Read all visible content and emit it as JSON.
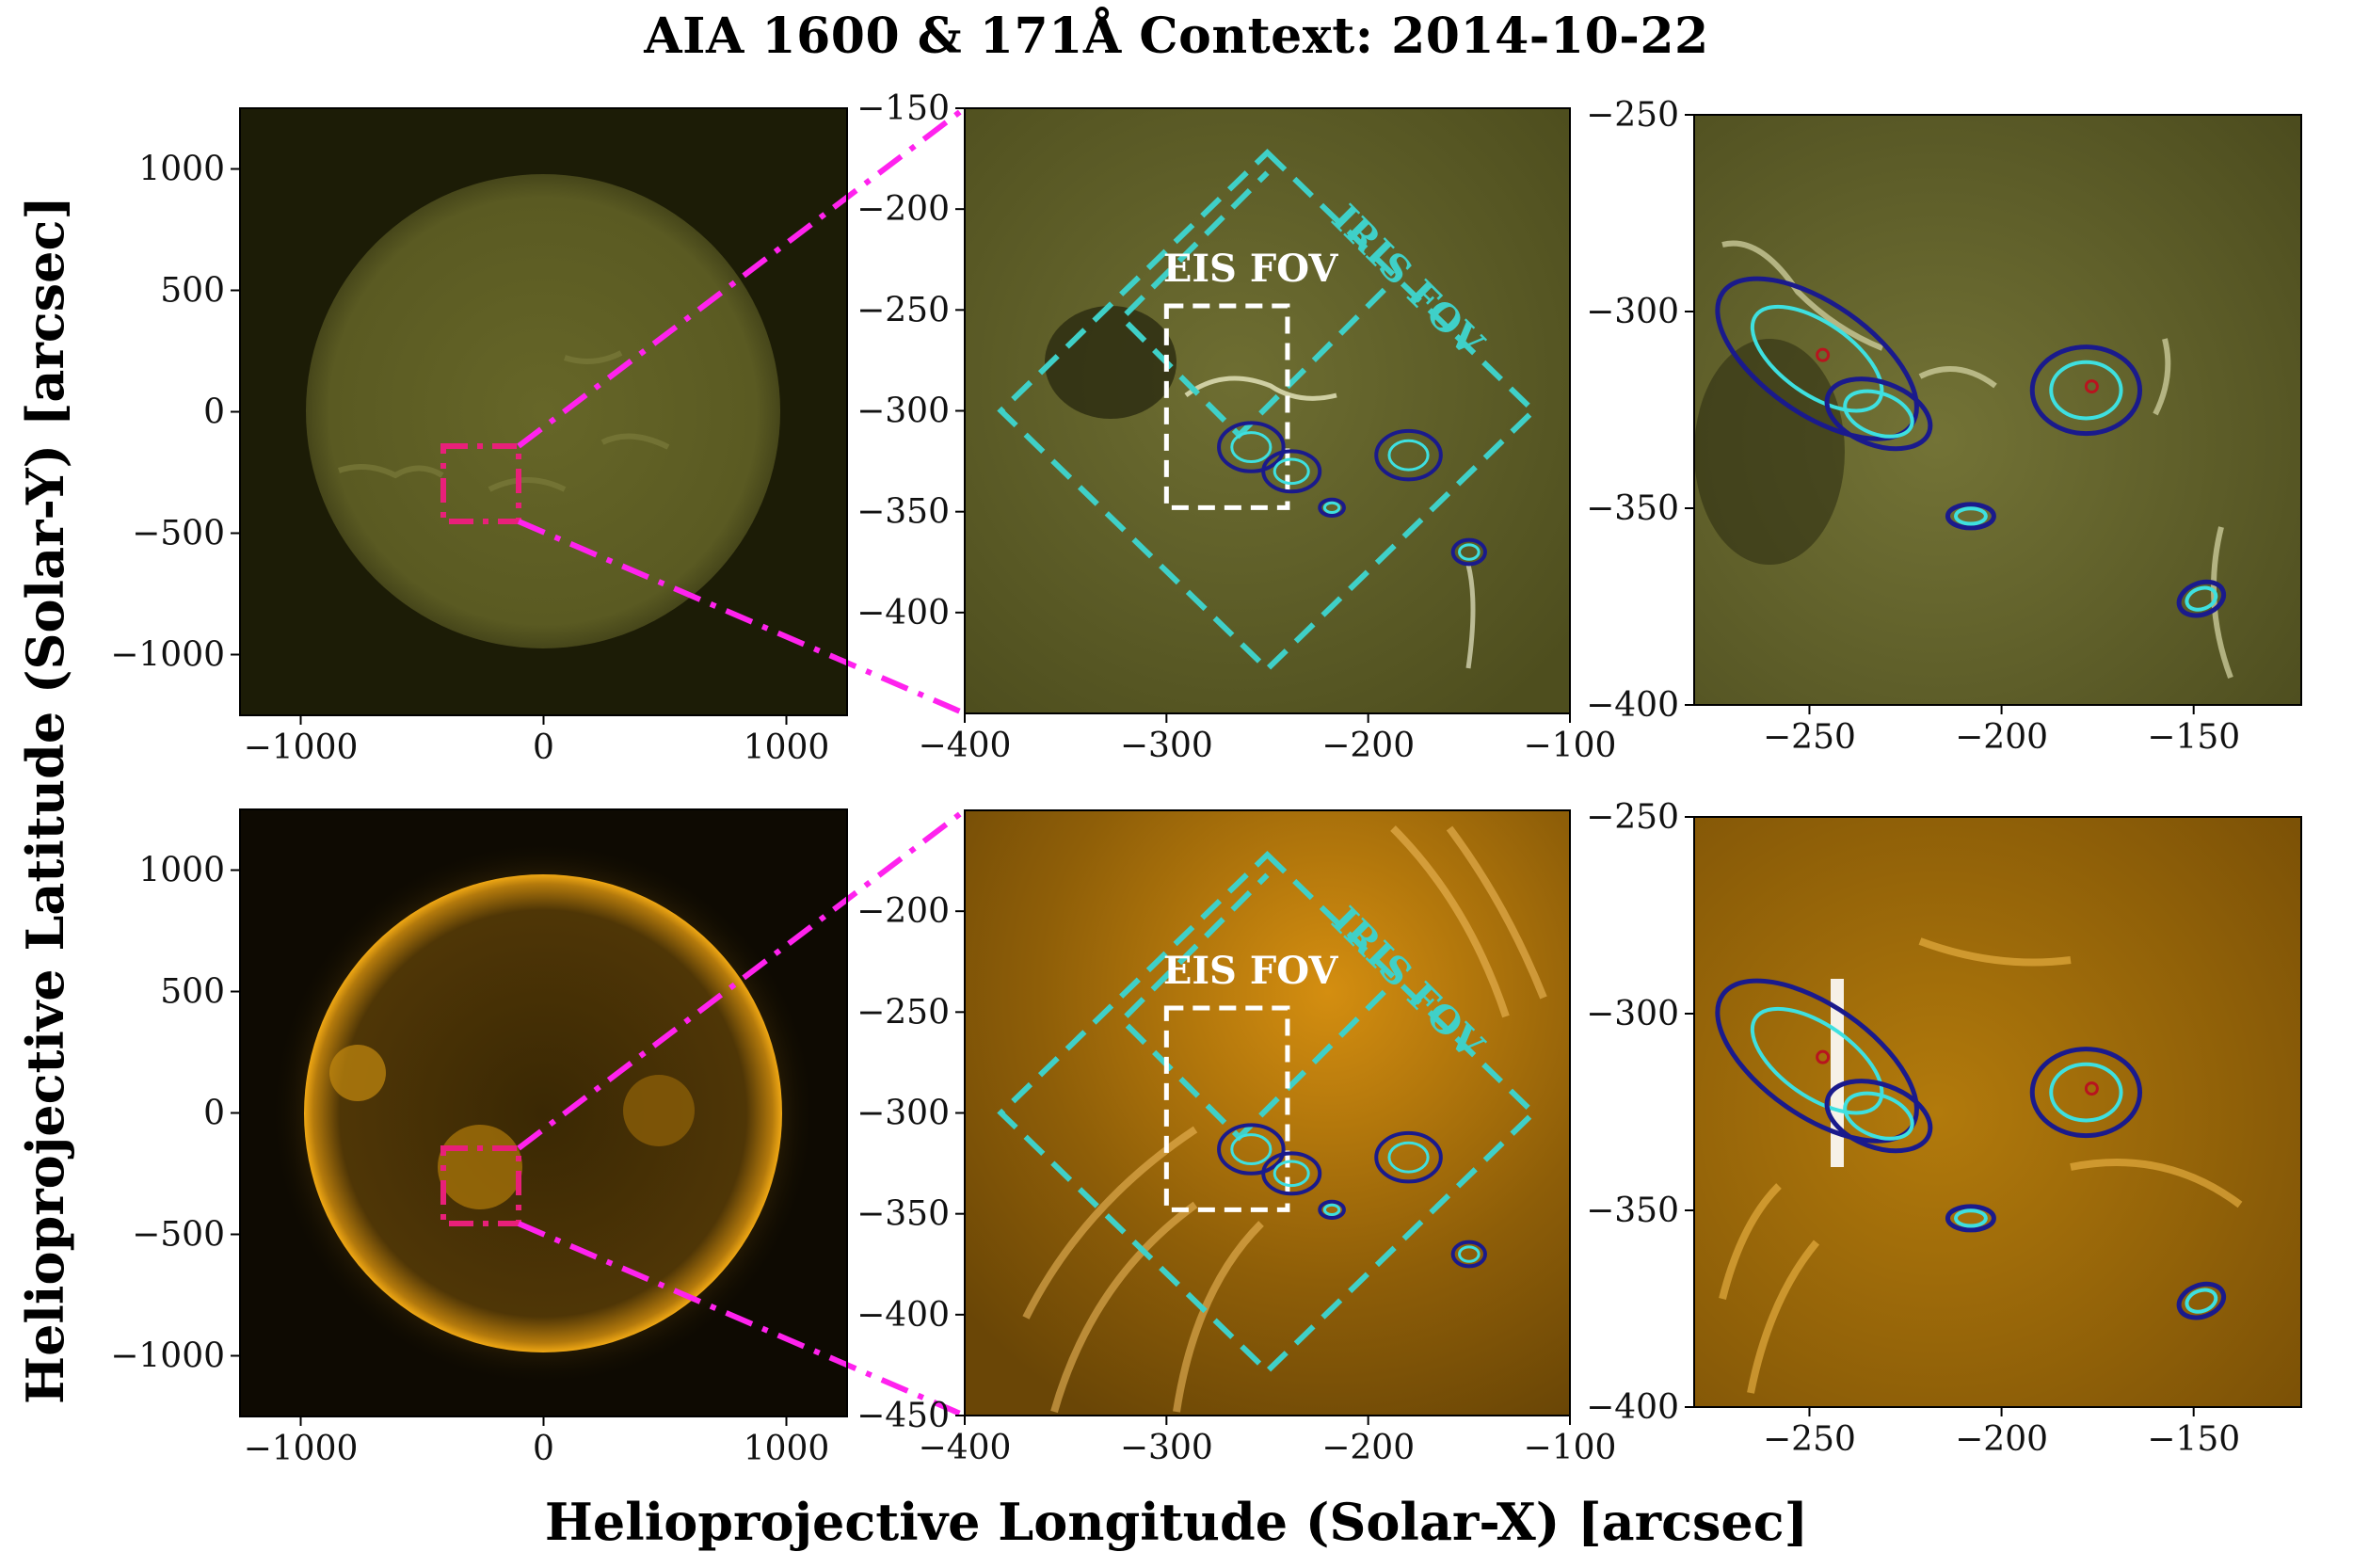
{
  "figure": {
    "title": "AIA 1600 & 171Å Context: 2014-10-22",
    "xlabel": "Helioprojective Longitude (Solar-X) [arcsec]",
    "ylabel": "Helioprojective Latitude (Solar-Y) [arcsec]"
  },
  "colors": {
    "aia1600_bg": "#1c1c06",
    "aia1600_disk": "#5a5a22",
    "aia171_bg": "#0e0a02",
    "aia171_disk": "#4a3204",
    "aia171_limb": "#e6a012",
    "zoom_connector": "#ff22ee",
    "context_box": "#e8207a",
    "iris_fov": "#3fd0c8",
    "eis_fov": "#ffffff",
    "contour_outer": "#1a1a8c",
    "contour_inner": "#3ee0e0",
    "contour_core": "#b8141e"
  },
  "annotations": {
    "eis_fov_label": "EIS FOV",
    "iris_fov_label": "IRIS FOV"
  },
  "chart_data": [
    {
      "type": "heatmap",
      "panel": "aia1600-full-disk",
      "row": "AIA 1600",
      "xlim": [
        -1250,
        1250
      ],
      "ylim": [
        -1250,
        1250
      ],
      "xticks": [
        -1000,
        0,
        1000
      ],
      "xtick_labels": [
        "−1000",
        "0",
        "1000"
      ],
      "yticks": [
        1000,
        500,
        0,
        -500,
        -1000
      ],
      "ytick_labels": [
        "1000",
        "500",
        "0",
        "−500",
        "−1000"
      ],
      "context_box": {
        "x": [
          -400,
          -100
        ],
        "y": [
          -450,
          -150
        ]
      }
    },
    {
      "type": "heatmap",
      "panel": "aia1600-region-zoom",
      "row": "AIA 1600",
      "xlim": [
        -400,
        -100
      ],
      "ylim": [
        -450,
        -150
      ],
      "xticks": [
        -400,
        -300,
        -200,
        -100
      ],
      "xtick_labels": [
        "−400",
        "−300",
        "−200",
        "−100"
      ],
      "yticks": [
        -150,
        -200,
        -250,
        -300,
        -350,
        -400
      ],
      "ytick_labels": [
        "−150",
        "−200",
        "−250",
        "−300",
        "−350",
        "−400"
      ],
      "eis_fov": {
        "x": [
          -300,
          -240
        ],
        "y": [
          -348,
          -248
        ]
      },
      "iris_fov_outer": [
        [
          -250,
          -172
        ],
        [
          -118,
          -300
        ],
        [
          -250,
          -428
        ],
        [
          -382,
          -300
        ]
      ],
      "iris_fov_inner": [
        [
          -192,
          -240
        ],
        [
          -264,
          -312
        ],
        [
          -322,
          -254
        ],
        [
          -250,
          -182
        ]
      ]
    },
    {
      "type": "heatmap",
      "panel": "aia1600-detail",
      "row": "AIA 1600",
      "xlim": [
        -280,
        -122
      ],
      "ylim": [
        -400,
        -250
      ],
      "xticks": [
        -250,
        -200,
        -150
      ],
      "xtick_labels": [
        "−250",
        "−200",
        "−150"
      ],
      "yticks": [
        -250,
        -300,
        -350,
        -400
      ],
      "ytick_labels": [
        "−250",
        "−300",
        "−350",
        "−400"
      ]
    },
    {
      "type": "heatmap",
      "panel": "aia171-full-disk",
      "row": "AIA 171Å",
      "xlim": [
        -1250,
        1250
      ],
      "ylim": [
        -1250,
        1250
      ],
      "xticks": [
        -1000,
        0,
        1000
      ],
      "xtick_labels": [
        "−1000",
        "0",
        "1000"
      ],
      "yticks": [
        1000,
        500,
        0,
        -500,
        -1000
      ],
      "ytick_labels": [
        "1000",
        "500",
        "0",
        "−500",
        "−1000"
      ],
      "context_box": {
        "x": [
          -400,
          -100
        ],
        "y": [
          -450,
          -150
        ]
      }
    },
    {
      "type": "heatmap",
      "panel": "aia171-region-zoom",
      "row": "AIA 171Å",
      "xlim": [
        -400,
        -100
      ],
      "ylim": [
        -450,
        -150
      ],
      "xticks": [
        -400,
        -300,
        -200,
        -100
      ],
      "xtick_labels": [
        "−400",
        "−300",
        "−200",
        "−100"
      ],
      "yticks": [
        -200,
        -250,
        -300,
        -350,
        -400,
        -450
      ],
      "ytick_labels": [
        "−200",
        "−250",
        "−300",
        "−350",
        "−400",
        "−450"
      ],
      "eis_fov": {
        "x": [
          -300,
          -240
        ],
        "y": [
          -348,
          -248
        ]
      },
      "iris_fov_outer": [
        [
          -250,
          -172
        ],
        [
          -118,
          -300
        ],
        [
          -250,
          -428
        ],
        [
          -382,
          -300
        ]
      ],
      "iris_fov_inner": [
        [
          -192,
          -240
        ],
        [
          -264,
          -312
        ],
        [
          -322,
          -254
        ],
        [
          -250,
          -182
        ]
      ]
    },
    {
      "type": "heatmap",
      "panel": "aia171-detail",
      "row": "AIA 171Å",
      "xlim": [
        -280,
        -122
      ],
      "ylim": [
        -400,
        -250
      ],
      "xticks": [
        -250,
        -200,
        -150
      ],
      "xtick_labels": [
        "−250",
        "−200",
        "−150"
      ],
      "yticks": [
        -250,
        -300,
        -350,
        -400
      ],
      "ytick_labels": [
        "−250",
        "−300",
        "−350",
        "−400"
      ]
    }
  ]
}
